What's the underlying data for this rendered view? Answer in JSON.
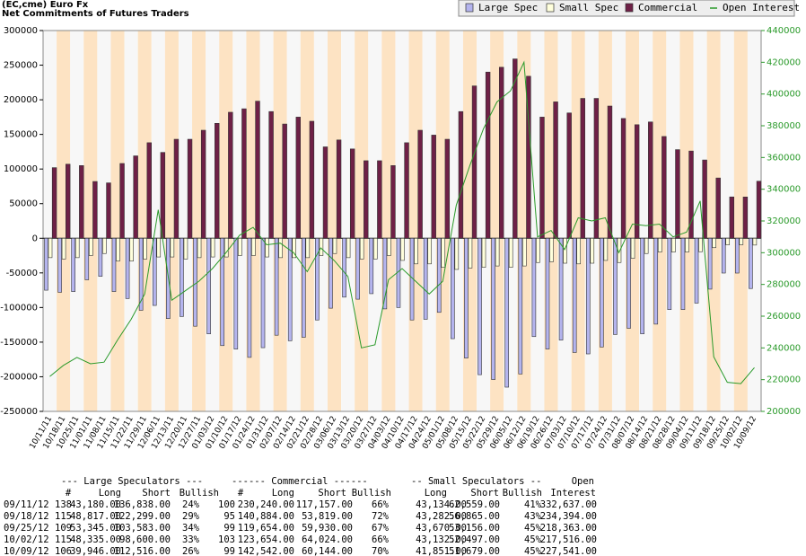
{
  "chart_data": {
    "type": "bar",
    "title": "(EC,cme) Euro Fx",
    "subtitle": "Net Commitments of Futures Traders",
    "categories": [
      "10/11/11",
      "10/18/11",
      "10/25/11",
      "11/01/11",
      "11/08/11",
      "11/15/11",
      "11/22/11",
      "11/29/11",
      "12/06/11",
      "12/13/11",
      "12/20/11",
      "12/27/11",
      "01/03/12",
      "01/10/12",
      "01/17/12",
      "01/24/12",
      "01/31/12",
      "02/07/12",
      "02/14/12",
      "02/21/12",
      "02/28/12",
      "03/06/12",
      "03/13/12",
      "03/20/12",
      "03/27/12",
      "04/03/12",
      "04/10/12",
      "04/17/12",
      "04/24/12",
      "05/01/12",
      "05/08/12",
      "05/15/12",
      "05/22/12",
      "05/29/12",
      "06/05/12",
      "06/12/12",
      "06/19/12",
      "06/26/12",
      "07/03/12",
      "07/10/12",
      "07/17/12",
      "07/24/12",
      "07/31/12",
      "08/07/12",
      "08/14/12",
      "08/21/12",
      "08/28/12",
      "09/04/12",
      "09/11/12",
      "09/18/12",
      "09/25/12",
      "10/02/12",
      "10/09/12"
    ],
    "series": [
      {
        "name": "Large Spec",
        "color": "#b4b4ee",
        "values": [
          -75000,
          -78000,
          -77000,
          -60000,
          -55000,
          -77000,
          -87000,
          -104000,
          -97000,
          -116000,
          -113000,
          -127000,
          -138000,
          -155000,
          -160000,
          -172000,
          -158000,
          -140000,
          -148000,
          -143000,
          -118000,
          -101000,
          -85000,
          -88000,
          -80000,
          -102000,
          -100000,
          -118000,
          -117000,
          -107000,
          -145000,
          -173000,
          -197000,
          -204000,
          -215000,
          -196000,
          -142000,
          -160000,
          -147000,
          -165000,
          -167000,
          -157000,
          -139000,
          -130000,
          -138000,
          -124000,
          -103000,
          -103000,
          -93658,
          -73482,
          -50238,
          -50265,
          -72570
        ]
      },
      {
        "name": "Small Spec",
        "color": "#ffffdc",
        "values": [
          -28000,
          -30000,
          -28000,
          -25000,
          -22000,
          -33000,
          -33000,
          -30000,
          -27000,
          -27000,
          -30000,
          -28000,
          -27000,
          -27000,
          -25000,
          -25000,
          -27000,
          -28000,
          -28000,
          -28000,
          -25000,
          -22000,
          -28000,
          -30000,
          -30000,
          -25000,
          -32000,
          -37000,
          -37000,
          -42000,
          -45000,
          -43000,
          -42000,
          -40000,
          -42000,
          -40000,
          -35000,
          -34000,
          -36000,
          -37000,
          -36000,
          -32000,
          -35000,
          -29000,
          -22000,
          -20000,
          -20000,
          -20000,
          -19425,
          -13583,
          -9486,
          -9365,
          -9828
        ]
      },
      {
        "name": "Commercial",
        "color": "#6e2046",
        "values": [
          102000,
          107000,
          105000,
          82000,
          80000,
          108000,
          119000,
          138000,
          124000,
          143000,
          143000,
          156000,
          166000,
          182000,
          187000,
          198000,
          183000,
          165000,
          175000,
          169000,
          132000,
          142000,
          129000,
          112000,
          112000,
          105000,
          138000,
          156000,
          149000,
          143000,
          183000,
          220000,
          240000,
          247000,
          259000,
          234000,
          175000,
          197000,
          181000,
          202000,
          202000,
          191000,
          173000,
          164000,
          168000,
          147000,
          128000,
          126000,
          113083,
          87065,
          59724,
          59630,
          82398
        ]
      },
      {
        "name": "Open Interest",
        "color": "#2a9a2a",
        "type": "line",
        "axis": "y2",
        "values": [
          222000,
          229000,
          234000,
          230000,
          231000,
          245000,
          258000,
          274000,
          327000,
          270000,
          276000,
          282000,
          290000,
          300000,
          311000,
          316000,
          305000,
          306000,
          300000,
          288000,
          303000,
          295000,
          285000,
          240000,
          242000,
          283000,
          290000,
          282000,
          274000,
          282000,
          330000,
          355000,
          378000,
          395000,
          402000,
          420000,
          310000,
          314000,
          302000,
          322000,
          320000,
          322000,
          300000,
          318000,
          317000,
          318000,
          310000,
          313000,
          332637,
          234394,
          218363,
          217516,
          227541
        ]
      }
    ],
    "ylim": [
      -250000,
      300000
    ],
    "yticks": [
      -250000,
      -200000,
      -150000,
      -100000,
      -50000,
      0,
      50000,
      100000,
      150000,
      200000,
      250000,
      300000
    ],
    "y2lim": [
      200000,
      440000
    ],
    "y2ticks": [
      200000,
      220000,
      240000,
      260000,
      280000,
      300000,
      320000,
      340000,
      360000,
      380000,
      400000,
      420000,
      440000
    ],
    "legend": "top-right"
  },
  "table": {
    "group_headers": [
      "--- Large Speculators ---",
      "------ Commercial ------",
      "-- Small Speculators --",
      "Open"
    ],
    "columns": [
      "#",
      "Long",
      "Short",
      "Bullish",
      "#",
      "Long",
      "Short",
      "Bullish",
      "Long",
      "Short",
      "Bullish",
      "Interest"
    ],
    "rows": [
      [
        "09/11/12",
        "138",
        "43,180.00",
        "136,838.00",
        "24%",
        "100",
        "230,240.00",
        "117,157.00",
        "66%",
        "43,134.00",
        "62,559.00",
        "41%",
        "332,637.00"
      ],
      [
        "09/18/12",
        "115",
        "48,817.00",
        "122,299.00",
        "29%",
        "95",
        "140,884.00",
        "53,819.00",
        "72%",
        "43,282.00",
        "56,865.00",
        "43%",
        "234,394.00"
      ],
      [
        "09/25/12",
        "109",
        "53,345.00",
        "103,583.00",
        "34%",
        "99",
        "119,654.00",
        "59,930.00",
        "67%",
        "43,670.00",
        "53,156.00",
        "45%",
        "218,363.00"
      ],
      [
        "10/02/12",
        "115",
        "48,335.00",
        "98,600.00",
        "33%",
        "103",
        "123,654.00",
        "64,024.00",
        "66%",
        "43,132.00",
        "52,497.00",
        "45%",
        "217,516.00"
      ],
      [
        "10/09/12",
        "106",
        "39,946.00",
        "112,516.00",
        "26%",
        "99",
        "142,542.00",
        "60,144.00",
        "70%",
        "41,851.00",
        "51,679.00",
        "45%",
        "227,541.00"
      ]
    ]
  }
}
